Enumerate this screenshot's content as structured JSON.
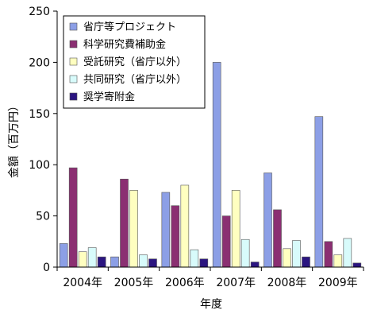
{
  "chart_data": {
    "type": "bar",
    "title": "",
    "xlabel": "年度",
    "ylabel": "金額（百万円）",
    "ylim": [
      0,
      250
    ],
    "yticks": [
      0,
      50,
      100,
      150,
      200,
      250
    ],
    "grid": false,
    "legend_position": "top-left",
    "categories": [
      "2004年",
      "2005年",
      "2006年",
      "2007年",
      "2008年",
      "2009年"
    ],
    "series": [
      {
        "name": "省庁等プロジェクト",
        "color": "#8C9FE6",
        "values": [
          23,
          10,
          73,
          200,
          92,
          147
        ]
      },
      {
        "name": "科学研究費補助金",
        "color": "#8B2F72",
        "values": [
          97,
          86,
          60,
          50,
          56,
          25
        ]
      },
      {
        "name": "受託研究（省庁以外）",
        "color": "#FFFFC0",
        "values": [
          15,
          75,
          80,
          75,
          18,
          12
        ]
      },
      {
        "name": "共同研究（省庁以外）",
        "color": "#D8FBFB",
        "values": [
          19,
          12,
          17,
          27,
          26,
          28
        ]
      },
      {
        "name": "奨学寄附金",
        "color": "#2B1580",
        "values": [
          10,
          8,
          8,
          5,
          10,
          4
        ]
      }
    ]
  }
}
